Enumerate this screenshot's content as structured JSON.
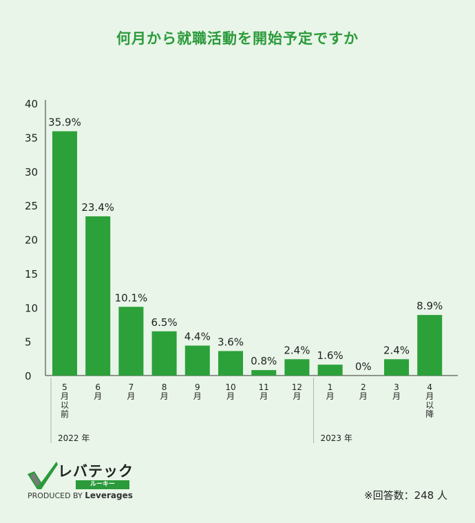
{
  "title": "何月から就職活動を開始予定ですか",
  "chart_data": {
    "type": "bar",
    "categories": [
      [
        "5",
        "月",
        "以",
        "前"
      ],
      [
        "6",
        "月"
      ],
      [
        "7",
        "月"
      ],
      [
        "8",
        "月"
      ],
      [
        "9",
        "月"
      ],
      [
        "10",
        "月"
      ],
      [
        "11",
        "月"
      ],
      [
        "12",
        "月"
      ],
      [
        "1",
        "月"
      ],
      [
        "2",
        "月"
      ],
      [
        "3",
        "月"
      ],
      [
        "4",
        "月",
        "以",
        "降"
      ]
    ],
    "values": [
      35.9,
      23.4,
      10.1,
      6.5,
      4.4,
      3.6,
      0.8,
      2.4,
      1.6,
      0,
      2.4,
      8.9
    ],
    "value_labels": [
      "35.9%",
      "23.4%",
      "10.1%",
      "6.5%",
      "4.4%",
      "3.6%",
      "0.8%",
      "2.4%",
      "1.6%",
      "0%",
      "2.4%",
      "8.9%"
    ],
    "ylim": [
      0,
      40
    ],
    "yticks": [
      0,
      5,
      10,
      15,
      20,
      25,
      30,
      35,
      40
    ],
    "year_groups": [
      {
        "label": "2022 年",
        "start": 0,
        "end": 7
      },
      {
        "label": "2023 年",
        "start": 8,
        "end": 11
      }
    ],
    "bar_color": "#2ca13a",
    "grid": false
  },
  "logo": {
    "name": "レバテック",
    "sub": "ルーキー",
    "produced_by": "PRODUCED BY",
    "company": "Leverages"
  },
  "respondents": "※回答数：248 人"
}
